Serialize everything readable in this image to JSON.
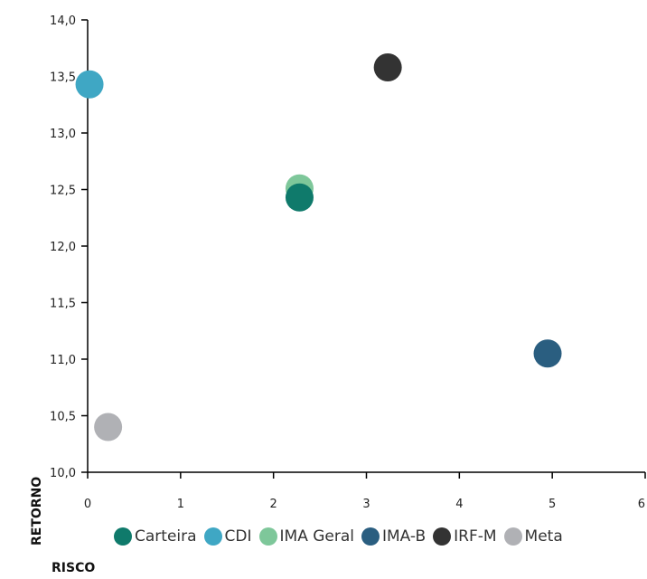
{
  "chart_data": {
    "type": "scatter",
    "xlabel": "RISCO",
    "ylabel": "RETORNO",
    "xlim": [
      0,
      6
    ],
    "ylim": [
      10.0,
      14.0
    ],
    "x_ticks": [
      "0",
      "1",
      "2",
      "3",
      "4",
      "5",
      "6"
    ],
    "y_ticks": [
      "10,0",
      "10,5",
      "11,0",
      "11,5",
      "12,0",
      "12,5",
      "13,0",
      "13,5",
      "14,0"
    ],
    "legend_position": "bottom",
    "series": [
      {
        "name": "Carteira",
        "color": "#0f7a6b",
        "x": 2.28,
        "y": 12.43
      },
      {
        "name": "CDI",
        "color": "#3fa7c4",
        "x": 0.02,
        "y": 13.43
      },
      {
        "name": "IMA Geral",
        "color": "#7ec79a",
        "x": 2.28,
        "y": 12.51
      },
      {
        "name": "IMA-B",
        "color": "#2a5e80",
        "x": 4.95,
        "y": 11.05
      },
      {
        "name": "IRF-M",
        "color": "#333333",
        "x": 3.23,
        "y": 13.58
      },
      {
        "name": "Meta",
        "color": "#b0b1b5",
        "x": 0.22,
        "y": 10.4
      }
    ]
  }
}
